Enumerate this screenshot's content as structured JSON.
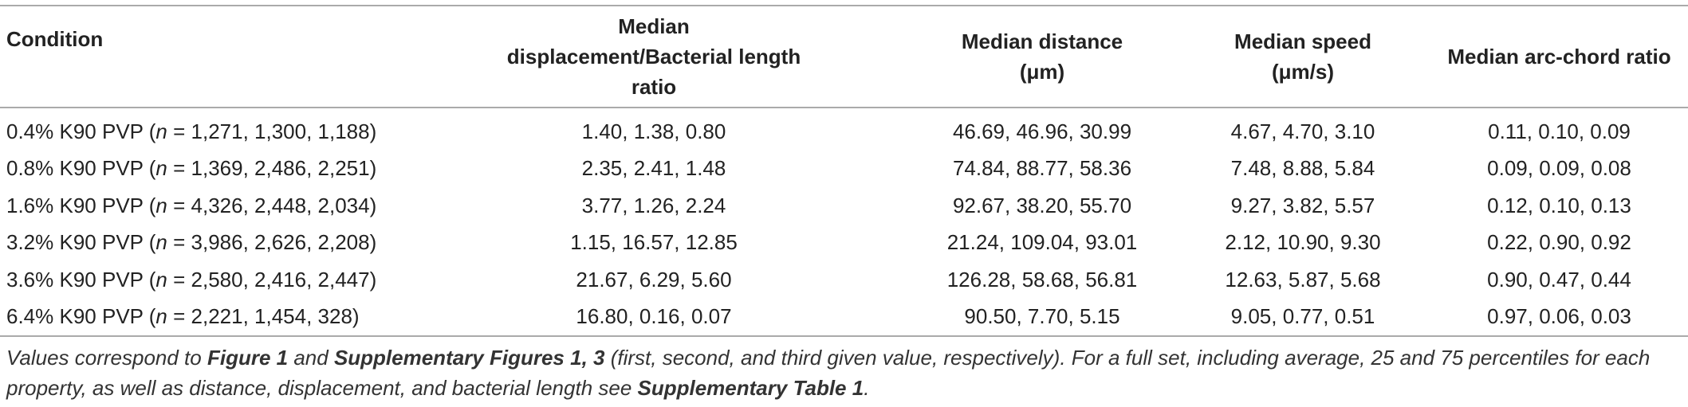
{
  "table": {
    "header": [
      "Condition",
      "Median displacement/Bacterial length ratio",
      "Median distance (μm)",
      "Median speed (μm/s)",
      "Median arc-chord ratio"
    ],
    "rows": [
      [
        [
          "0.4% K90 PVP (",
          "n",
          " = 1,271, 1,300, 1,188)"
        ],
        "1.40, 1.38, 0.80",
        "46.69, 46.96, 30.99",
        "4.67, 4.70, 3.10",
        "0.11, 0.10, 0.09"
      ],
      [
        [
          "0.8% K90 PVP (",
          "n",
          " = 1,369, 2,486, 2,251)"
        ],
        "2.35, 2.41, 1.48",
        "74.84, 88.77, 58.36",
        "7.48, 8.88, 5.84",
        "0.09, 0.09, 0.08"
      ],
      [
        [
          "1.6% K90 PVP (",
          "n",
          " = 4,326, 2,448, 2,034)"
        ],
        "3.77, 1.26, 2.24",
        "92.67, 38.20, 55.70",
        "9.27, 3.82, 5.57",
        "0.12, 0.10, 0.13"
      ],
      [
        [
          "3.2% K90 PVP (",
          "n",
          " = 3,986, 2,626, 2,208)"
        ],
        "1.15, 16.57, 12.85",
        "21.24, 109.04, 93.01",
        "2.12, 10.90, 9.30",
        "0.22, 0.90, 0.92"
      ],
      [
        [
          "3.6% K90 PVP (",
          "n",
          " = 2,580, 2,416, 2,447)"
        ],
        "21.67, 6.29, 5.60",
        "126.28, 58.68, 56.81",
        "12.63, 5.87, 5.68",
        "0.90, 0.47, 0.44"
      ],
      [
        [
          "6.4% K90 PVP (",
          "n",
          " = 2,221, 1,454, 328)"
        ],
        "16.80, 0.16, 0.07",
        "90.50, 7.70, 5.15",
        "9.05, 0.77, 0.51",
        "0.97, 0.06, 0.03"
      ]
    ],
    "footnote": [
      {
        "text": "Values correspond to ",
        "style": "italic"
      },
      {
        "text": "Figure 1",
        "style": "bold-italic"
      },
      {
        "text": " and ",
        "style": "italic"
      },
      {
        "text": "Supplementary Figures 1, 3",
        "style": "bold-italic"
      },
      {
        "text": " (first, second, and third given value, respectively). For a full set, including average, 25 and 75 percentiles for each property, as well as distance, displacement, and bacterial length see ",
        "style": "italic"
      },
      {
        "text": "Supplementary Table 1",
        "style": "bold-italic"
      },
      {
        "text": ".",
        "style": "italic"
      }
    ]
  }
}
